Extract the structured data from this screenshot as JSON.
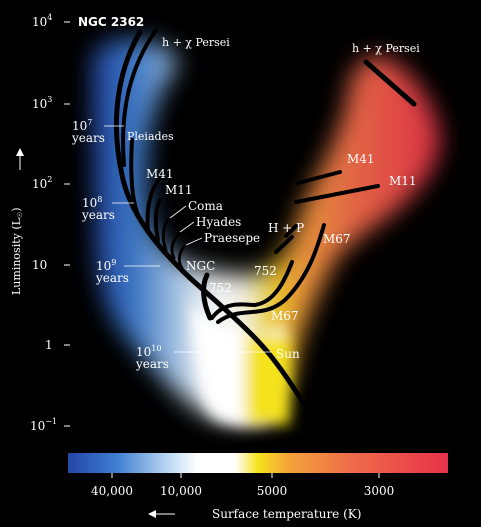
{
  "axes": {
    "y_label": "Luminosity (L",
    "y_label_suffix": ")",
    "y_ticks": [
      {
        "base": "10",
        "exp": "4"
      },
      {
        "base": "10",
        "exp": "3"
      },
      {
        "base": "10",
        "exp": "2"
      },
      {
        "base": "10",
        "exp": ""
      },
      {
        "base": "1",
        "exp": ""
      },
      {
        "base": "10",
        "exp": "−1"
      }
    ],
    "x_label": "Surface temperature (K)",
    "x_ticks": [
      "40,000",
      "10,000",
      "5000",
      "3000"
    ],
    "y_scale": "log"
  },
  "clusters": {
    "ngc2362": "NGC 2362",
    "h_chi_left": "h + χ Persei",
    "h_chi_right": "h + χ Persei",
    "pleiades": "Pleiades",
    "m41_left": "M41",
    "m11_left": "M11",
    "coma": "Coma",
    "hyades": "Hyades",
    "praesepe": "Praesepe",
    "ngc752_top": "NGC",
    "ngc752_bottom": "752",
    "ngc752_right": "752",
    "hp": "H + P",
    "m67_upper": "M67",
    "m67_lower": "M67",
    "m41_right": "M41",
    "m11_right": "M11",
    "sun": "Sun"
  },
  "ages": [
    {
      "base": "10",
      "exp": "7",
      "unit": "years"
    },
    {
      "base": "10",
      "exp": "8",
      "unit": "years"
    },
    {
      "base": "10",
      "exp": "9",
      "unit": "years"
    },
    {
      "base": "10",
      "exp": "10",
      "unit": "years"
    }
  ],
  "colors": {
    "background": "#000000",
    "track": "#000000",
    "gradient": [
      "#2346a8",
      "#3f7fd0",
      "#b9d6f2",
      "#ffffff",
      "#ffffff",
      "#f4e21a",
      "#f4a33a",
      "#ef6b4a",
      "#e8324a"
    ]
  }
}
